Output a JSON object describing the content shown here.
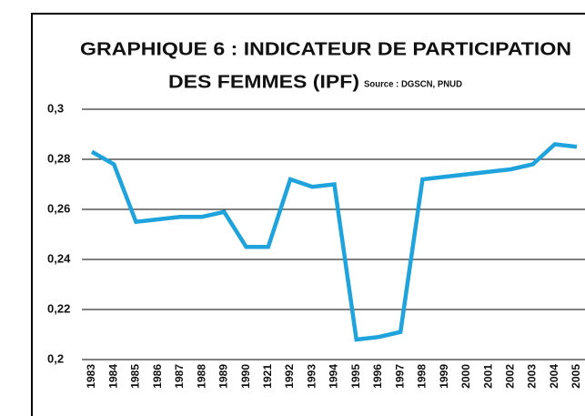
{
  "chart_data": {
    "type": "line",
    "title": [
      "GRAPHIQUE 6 : INDICATEUR DE PARTICIPATION",
      "DES FEMMES (IPF)"
    ],
    "source": "Source : DGSCN, PNUD",
    "categories": [
      "1983",
      "1984",
      "1985",
      "1986",
      "1987",
      "1988",
      "1989",
      "1990",
      "1921",
      "1992",
      "1993",
      "1994",
      "1995",
      "1996",
      "1997",
      "1998",
      "1999",
      "2000",
      "2001",
      "2002",
      "2003",
      "2004",
      "2005"
    ],
    "values": [
      0.283,
      0.278,
      0.255,
      0.256,
      0.257,
      0.257,
      0.259,
      0.245,
      0.245,
      0.272,
      0.269,
      0.27,
      0.208,
      0.209,
      0.211,
      0.272,
      0.273,
      0.274,
      0.275,
      0.276,
      0.278,
      0.286,
      0.285
    ],
    "color": "#1fa3dc",
    "ylim": [
      0.2,
      0.3
    ],
    "yticks": [
      {
        "value": 0.2,
        "label": "0,2"
      },
      {
        "value": 0.22,
        "label": "0,22"
      },
      {
        "value": 0.24,
        "label": "0,24"
      },
      {
        "value": 0.26,
        "label": "0,26"
      },
      {
        "value": 0.28,
        "label": "0,28"
      },
      {
        "value": 0.3,
        "label": "0,3"
      }
    ],
    "grid": true
  }
}
